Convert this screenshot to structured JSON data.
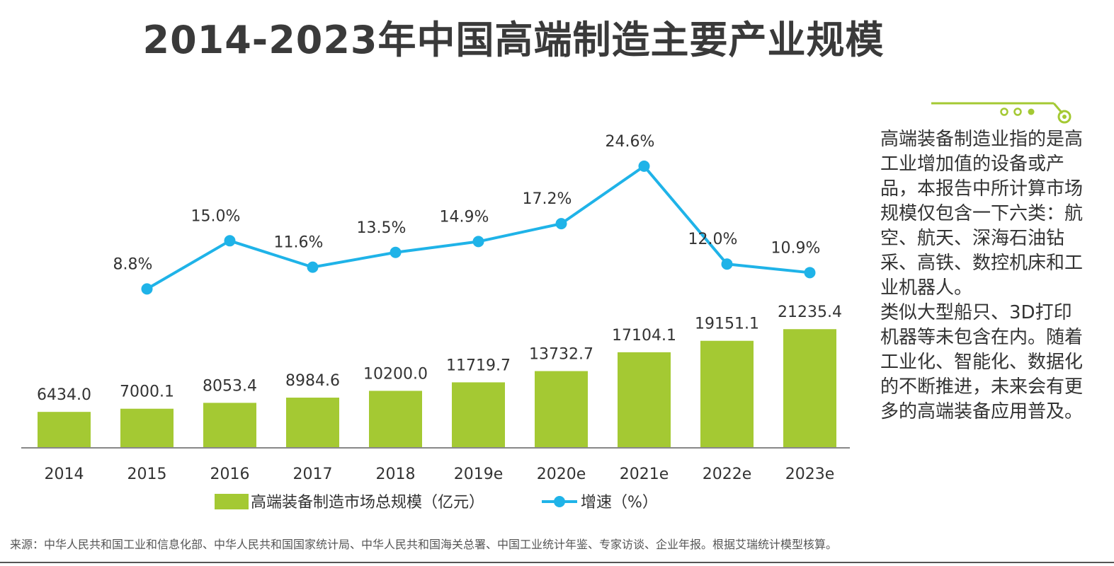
{
  "title": "2014-2023年中国高端制造主要产业规模",
  "colors": {
    "bar": "#a4c933",
    "line": "#1fb3e8",
    "axis": "#888888"
  },
  "chart_data": {
    "type": "bar",
    "categories": [
      "2014",
      "2015",
      "2016",
      "2017",
      "2018",
      "2019e",
      "2020e",
      "2021e",
      "2022e",
      "2023e"
    ],
    "series": [
      {
        "name": "高端装备制造市场总规模（亿元）",
        "type": "bar",
        "values": [
          6434.0,
          7000.1,
          8053.4,
          8984.6,
          10200.0,
          11719.7,
          13732.7,
          17104.1,
          19151.1,
          21235.4
        ],
        "labels": [
          "6434.0",
          "7000.1",
          "8053.4",
          "8984.6",
          "10200.0",
          "11719.7",
          "13732.7",
          "17104.1",
          "19151.1",
          "21235.4"
        ]
      },
      {
        "name": "增速（%）",
        "type": "line",
        "values": [
          null,
          8.8,
          15.0,
          11.6,
          13.5,
          14.9,
          17.2,
          24.6,
          12.0,
          10.9
        ],
        "labels": [
          "",
          "8.8%",
          "15.0%",
          "11.6%",
          "13.5%",
          "14.9%",
          "17.2%",
          "24.6%",
          "12.0%",
          "10.9%"
        ]
      }
    ],
    "legend": "bottom"
  },
  "side_note": "高端装备制造业指的是高工业增加值的设备或产品，本报告中所计算市场规模仅包含一下六类：航空、航天、深海石油钻采、高铁、数控机床和工业机器人。\n类似大型船只、3D打印机器等未包含在内。随着工业化、智能化、数据化的不断推进，未来会有更多的高端装备应用普及。",
  "source": "来源：中华人民共和国工业和信息化部、中华人民共和国国家统计局、中华人民共和国海关总署、中国工业统计年鉴、专家访谈、企业年报。根据艾瑞统计模型核算。"
}
